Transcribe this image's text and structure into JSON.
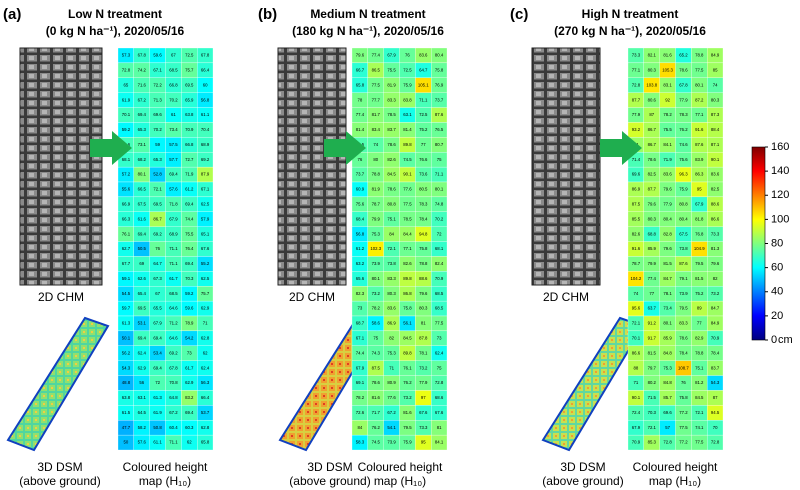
{
  "chart_data": [
    {
      "type": "heatmap",
      "panel_label": "(a)",
      "title": "Low N treatment",
      "subtitle": "(0 kg N ha⁻¹), 2020/05/16",
      "chm_label": "2D CHM",
      "dsm_label": [
        "3D DSM",
        "(above ground)"
      ],
      "map_label": [
        "Coloured height",
        "map (H₁₀)"
      ],
      "values": [
        [
          57.3,
          67.8,
          59.6,
          67.0,
          72.5,
          67.8
        ],
        [
          72.8,
          74.2,
          67.1,
          68.5,
          75.7,
          66.4
        ],
        [
          65.0,
          71.6,
          72.2,
          66.8,
          69.5,
          60.0
        ],
        [
          61.9,
          67.2,
          71.3,
          70.2,
          65.9,
          56.8
        ],
        [
          70.1,
          69.4,
          69.6,
          61.0,
          63.8,
          61.1
        ],
        [
          59.2,
          65.3,
          70.2,
          73.4,
          70.9,
          70.4
        ],
        [
          70.6,
          73.1,
          59.0,
          57.5,
          66.8,
          68.9
        ],
        [
          68.1,
          68.2,
          65.3,
          57.7,
          72.7,
          69.2
        ],
        [
          57.2,
          80.1,
          52.8,
          69.4,
          71.9,
          87.9
        ],
        [
          55.6,
          66.5,
          72.1,
          57.6,
          61.2,
          67.1
        ],
        [
          66.9,
          67.5,
          69.5,
          71.8,
          69.4,
          62.5
        ],
        [
          66.3,
          61.6,
          86.7,
          67.9,
          74.4,
          57.9
        ],
        [
          76.1,
          69.4,
          69.2,
          68.9,
          75.5,
          65.1
        ],
        [
          62.7,
          50.5,
          76.0,
          71.1,
          76.4,
          67.6
        ],
        [
          67.7,
          69.0,
          64.7,
          71.1,
          69.4,
          55.2
        ],
        [
          59.1,
          62.6,
          67.3,
          61.7,
          70.3,
          62.5
        ],
        [
          54.5,
          65.4,
          67.0,
          68.5,
          59.2,
          75.7
        ],
        [
          59.7,
          69.5,
          65.5,
          64.6,
          59.6,
          62.9
        ],
        [
          61.3,
          53.1,
          67.9,
          71.2,
          78.9,
          71.0
        ],
        [
          50.1,
          69.4,
          69.4,
          64.6,
          54.2,
          62.8
        ],
        [
          56.2,
          62.4,
          53.4,
          69.2,
          73.0,
          62.0
        ],
        [
          54.3,
          62.9,
          69.4,
          67.8,
          61.7,
          62.4
        ],
        [
          48.8,
          56.0,
          72.0,
          70.8,
          62.9,
          56.3
        ],
        [
          63.8,
          63.1,
          61.3,
          64.8,
          83.2,
          66.4
        ],
        [
          61.5,
          64.5,
          61.9,
          67.2,
          69.4,
          53.7
        ],
        [
          47.7,
          58.2,
          50.8,
          60.4,
          60.3,
          62.8
        ],
        [
          50.0,
          57.6,
          61.1,
          71.1,
          62.0,
          65.8
        ]
      ]
    },
    {
      "type": "heatmap",
      "panel_label": "(b)",
      "title": "Medium N treatment",
      "subtitle": "(180 kg N ha⁻¹), 2020/05/16",
      "chm_label": "2D CHM",
      "dsm_label": [
        "3D DSM",
        "(above ground)"
      ],
      "map_label": [
        "Coloured height",
        "map (H₁₀)"
      ],
      "values": [
        [
          79.6,
          77.4,
          67.9,
          76.0,
          83.6,
          80.4
        ],
        [
          66.7,
          86.5,
          75.5,
          72.5,
          64.7,
          75.8
        ],
        [
          65.8,
          77.5,
          81.9,
          75.9,
          105.1,
          76.9
        ],
        [
          78.0,
          77.7,
          83.3,
          83.8,
          71.1,
          73.7
        ],
        [
          77.4,
          81.7,
          78.5,
          63.1,
          72.5,
          87.6
        ],
        [
          81.4,
          83.4,
          83.7,
          81.4,
          75.2,
          76.5
        ],
        [
          72.5,
          74.0,
          78.6,
          89.8,
          77.0,
          80.7
        ],
        [
          76.0,
          80.0,
          82.6,
          74.5,
          76.6,
          75.0
        ],
        [
          73.7,
          78.8,
          84.5,
          90.1,
          73.6,
          71.1
        ],
        [
          60.9,
          81.9,
          78.6,
          77.6,
          80.5,
          80.1
        ],
        [
          75.6,
          78.7,
          80.8,
          77.5,
          78.3,
          74.8
        ],
        [
          68.4,
          79.9,
          75.1,
          78.5,
          78.4,
          70.2
        ],
        [
          56.8,
          75.3,
          84.0,
          84.4,
          94.8,
          72.0
        ],
        [
          61.2,
          102.3,
          72.1,
          77.1,
          75.8,
          68.1
        ],
        [
          63.2,
          73.9,
          73.8,
          82.6,
          78.8,
          82.4
        ],
        [
          65.6,
          80.1,
          83.3,
          89.8,
          88.6,
          70.9
        ],
        [
          82.3,
          73.2,
          80.3,
          86.8,
          79.6,
          68.5
        ],
        [
          73.0,
          78.2,
          83.6,
          75.8,
          80.3,
          68.5
        ],
        [
          68.7,
          58.6,
          86.9,
          56.1,
          81.0,
          77.5
        ],
        [
          67.1,
          75.0,
          82.0,
          84.5,
          87.8,
          73.0
        ],
        [
          74.4,
          74.3,
          75.3,
          89.8,
          78.1,
          62.4
        ],
        [
          67.9,
          87.5,
          71.0,
          76.1,
          73.2,
          75.0
        ],
        [
          69.1,
          78.6,
          80.9,
          76.2,
          77.9,
          72.8
        ],
        [
          78.2,
          81.6,
          77.6,
          73.2,
          97.0,
          68.6
        ],
        [
          72.6,
          71.7,
          67.2,
          81.6,
          67.6,
          67.6
        ],
        [
          84.0,
          76.2,
          54.1,
          79.5,
          73.3,
          81.0
        ],
        [
          58.3,
          74.5,
          73.9,
          75.9,
          95.0,
          84.1
        ]
      ]
    },
    {
      "type": "heatmap",
      "panel_label": "(c)",
      "title": "High N treatment",
      "subtitle": "(270 kg N ha⁻¹), 2020/05/16",
      "chm_label": "2D CHM",
      "dsm_label": [
        "3D DSM",
        "(above ground)"
      ],
      "map_label": [
        "Coloured height",
        "map (H₁₀)"
      ],
      "values": [
        [
          73.3,
          82.1,
          81.6,
          65.2,
          78.8,
          84.9
        ],
        [
          77.1,
          80.3,
          105.3,
          78.6,
          77.5,
          85.0
        ],
        [
          72.8,
          103.8,
          83.1,
          67.8,
          80.1,
          74.0
        ],
        [
          87.7,
          80.6,
          92.0,
          77.9,
          87.2,
          80.3
        ],
        [
          77.9,
          87.0,
          78.2,
          78.3,
          77.1,
          87.3
        ],
        [
          93.2,
          86.7,
          75.5,
          76.2,
          91.6,
          88.4
        ],
        [
          84.0,
          86.7,
          84.1,
          74.6,
          87.6,
          87.1
        ],
        [
          71.4,
          78.6,
          71.9,
          75.6,
          83.9,
          90.1
        ],
        [
          69.6,
          82.5,
          83.6,
          96.3,
          86.3,
          83.6
        ],
        [
          86.9,
          87.7,
          79.6,
          75.9,
          95.0,
          82.5
        ],
        [
          87.5,
          79.6,
          77.9,
          80.8,
          67.9,
          88.6
        ],
        [
          85.5,
          80.3,
          80.4,
          80.4,
          81.8,
          86.6
        ],
        [
          82.6,
          68.8,
          82.8,
          67.5,
          76.8,
          73.3
        ],
        [
          91.6,
          85.9,
          79.6,
          73.8,
          104.9,
          81.3
        ],
        [
          78.7,
          79.9,
          81.5,
          87.6,
          79.5,
          79.6
        ],
        [
          104.2,
          77.4,
          84.7,
          79.1,
          81.5,
          82.0
        ],
        [
          74.0,
          77.0,
          78.1,
          73.9,
          75.2,
          73.2
        ],
        [
          95.6,
          63.7,
          73.4,
          79.5,
          89.0,
          84.7
        ],
        [
          72.1,
          91.2,
          80.1,
          83.3,
          77.0,
          84.9
        ],
        [
          70.1,
          91.7,
          85.9,
          78.6,
          82.9,
          70.9
        ],
        [
          86.6,
          81.5,
          84.8,
          78.4,
          78.8,
          78.4
        ],
        [
          88.0,
          79.7,
          75.3,
          108.7,
          75.1,
          83.7
        ],
        [
          71.0,
          80.2,
          84.8,
          76.0,
          81.2,
          54.3
        ],
        [
          90.1,
          71.5,
          85.7,
          75.8,
          84.5,
          87.0
        ],
        [
          72.4,
          70.3,
          69.6,
          77.2,
          72.1,
          94.5
        ],
        [
          67.9,
          72.1,
          57.0,
          77.5,
          74.1,
          70.0
        ],
        [
          70.9,
          85.3,
          72.8,
          77.2,
          77.5,
          72.8
        ]
      ]
    }
  ],
  "colorbar": {
    "colormap": "jet",
    "zlim": [
      0,
      160
    ],
    "zticks": [
      0,
      20,
      40,
      60,
      80,
      100,
      120,
      140,
      160
    ],
    "unit": "cm"
  }
}
